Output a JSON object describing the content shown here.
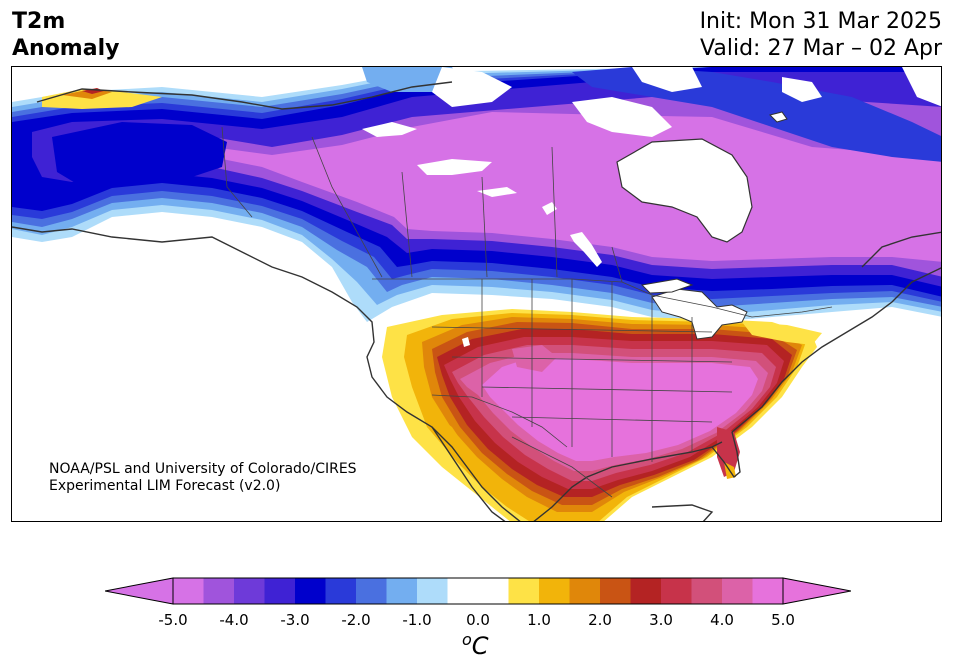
{
  "title": {
    "left_line1": "T2m",
    "left_line2": "Anomaly",
    "init": "Init: Mon 31 Mar 2025",
    "valid": "Valid: 27 Mar – 02 Apr"
  },
  "credit": {
    "line1": "NOAA/PSL and University of Colorado/CIRES",
    "line2": "Experimental LIM Forecast (v2.0)"
  },
  "colorbar": {
    "unit_base": "C",
    "unit_sup": "o",
    "tick_labels": [
      "-5.0",
      "-4.0",
      "-3.0",
      "-2.0",
      "-1.0",
      "0.0",
      "1.0",
      "2.0",
      "3.0",
      "4.0",
      "5.0"
    ],
    "colors": [
      "#d672e6",
      "#a054dc",
      "#6e3ad9",
      "#3f22d4",
      "#0000cc",
      "#2a3ad9",
      "#4a70e0",
      "#73aef0",
      "#aedcfa",
      "#ffffff",
      "#ffffff",
      "#fee246",
      "#f2b40a",
      "#e0870a",
      "#c95414",
      "#b42323",
      "#c7334a",
      "#d2507a",
      "#dc62a8",
      "#e672dc"
    ],
    "under_color": "#d672e6",
    "over_color": "#e672dc"
  },
  "map": {
    "colors": {
      "cold_extreme": "#d672e6",
      "cold_4": "#a054dc",
      "cold_3": "#3f22d4",
      "cold_25": "#0000cc",
      "cold_2": "#2a3ad9",
      "cold_15": "#4a70e0",
      "cold_1": "#73aef0",
      "cold_05": "#aedcfa",
      "warm_05": "#fee246",
      "warm_1": "#f2b40a",
      "warm_2": "#e0870a",
      "warm_25": "#c95414",
      "warm_3": "#b42323",
      "warm_35": "#c7334a",
      "warm_4": "#d2507a",
      "warm_45": "#dc62a8",
      "warm_extreme": "#e672dc",
      "coast": "#333333",
      "border": "#444444"
    }
  }
}
